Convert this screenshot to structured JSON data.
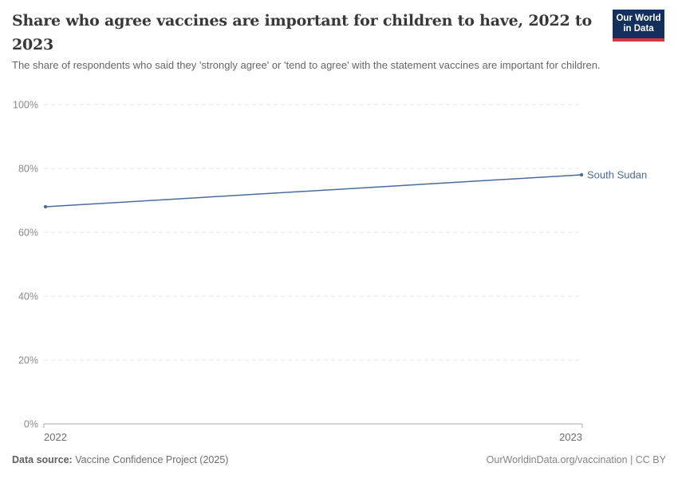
{
  "header": {
    "title": "Share who agree vaccines are important for children to have, 2022 to 2023",
    "subtitle": "The share of respondents who said they 'strongly agree' or 'tend to agree' with the statement vaccines are important for children."
  },
  "logo": {
    "line1": "Our World",
    "line2": "in Data",
    "bg_color": "#12305b",
    "accent_color": "#d8353f"
  },
  "chart_data": {
    "type": "line",
    "title": "Share who agree vaccines are important for children to have",
    "x": [
      2022,
      2023
    ],
    "series": [
      {
        "name": "South Sudan",
        "color": "#4C6A9C",
        "values": [
          68,
          78
        ]
      }
    ],
    "xlabel": "",
    "ylabel": "",
    "ylim": [
      0,
      100
    ],
    "yticks": [
      0,
      20,
      40,
      60,
      80,
      100
    ],
    "ytick_suffix": "%",
    "xticks": [
      2022,
      2023
    ],
    "grid": "horizontal-dashed",
    "legend": "end-of-line-label"
  },
  "footer": {
    "data_source_label": "Data source:",
    "data_source_value": " Vaccine Confidence Project (2025)",
    "credit": "OurWorldinData.org/vaccination | CC BY"
  },
  "colors": {
    "grid": "#e3e3e3",
    "axis": "#a9a9a9",
    "ytick_label": "#8b8b8b",
    "xtick_label": "#6d6d6d",
    "title_text": "#383838",
    "subtitle_text": "#666666"
  }
}
